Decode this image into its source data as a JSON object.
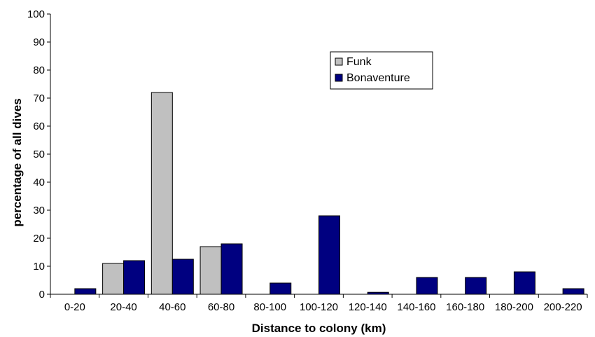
{
  "chart_data": {
    "type": "bar",
    "categories": [
      "0-20",
      "20-40",
      "40-60",
      "60-80",
      "80-100",
      "100-120",
      "120-140",
      "140-160",
      "160-180",
      "180-200",
      "200-220"
    ],
    "series": [
      {
        "name": "Funk",
        "color": "#c0c0c0",
        "values": [
          0,
          11,
          72,
          17,
          0,
          0,
          0,
          0,
          0,
          0,
          0
        ]
      },
      {
        "name": "Bonaventure",
        "color": "#000080",
        "values": [
          2,
          12,
          12.5,
          18,
          4,
          28,
          0.7,
          6,
          6,
          8,
          2
        ]
      }
    ],
    "yticks": [
      0,
      10,
      20,
      30,
      40,
      50,
      60,
      70,
      80,
      90,
      100
    ],
    "ylim": [
      0,
      100
    ],
    "xlabel": "Distance to colony (km)",
    "ylabel": "percentage of all dives",
    "legend_position": "top-right",
    "grid": false
  }
}
